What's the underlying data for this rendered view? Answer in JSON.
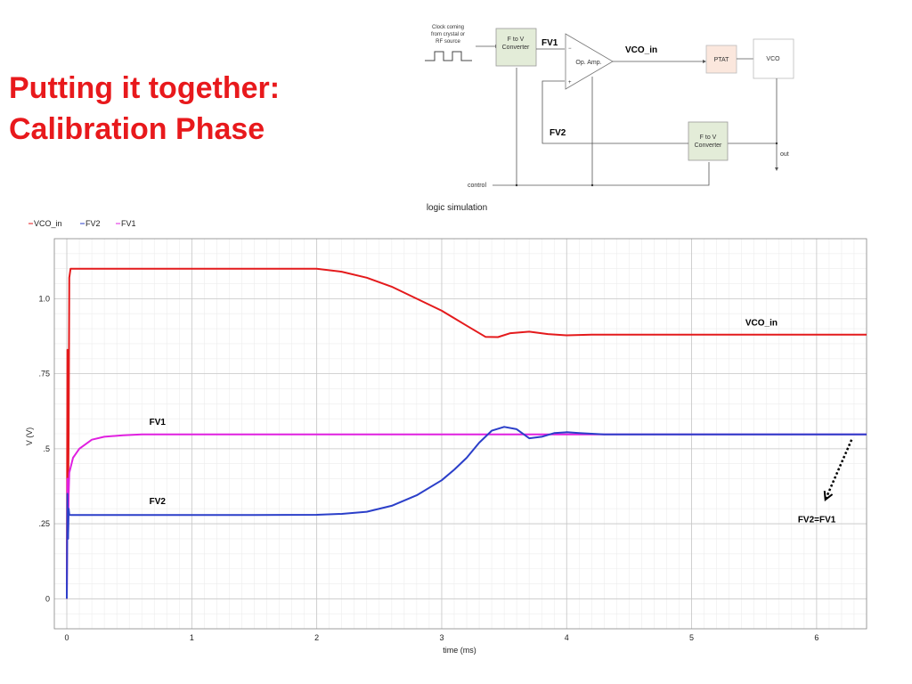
{
  "slide": {
    "title_line1": "Putting it together:",
    "title_line2": "Calibration Phase"
  },
  "diagram": {
    "clock_text": [
      "Clock coming",
      "from crystal or",
      "RF source"
    ],
    "fv_converter_top": [
      "F to V",
      "Converter"
    ],
    "fv_converter_bottom": [
      "F to V",
      "Converter"
    ],
    "opamp_label": "Op. Amp.",
    "opamp_minus": "−",
    "opamp_plus": "+",
    "ptat_label": "PTAT",
    "vco_label": "VCO",
    "fv1_label": "FV1",
    "fv2_label": "FV2",
    "vco_in_label": "VCO_in",
    "out_label": "out",
    "control_label": "control",
    "colors": {
      "converter_fill": "#e3ecd8",
      "ptat_fill": "#fbe7dd"
    }
  },
  "chart_data": {
    "type": "line",
    "title": "logic simulation",
    "xlabel": "time (ms)",
    "ylabel": "V (V)",
    "xlim": [
      -0.1,
      6.4
    ],
    "ylim": [
      -0.1,
      1.2
    ],
    "x_ticks": [
      {
        "value": 0,
        "label": "0"
      },
      {
        "value": 1,
        "label": "1"
      },
      {
        "value": 2,
        "label": "2"
      },
      {
        "value": 3,
        "label": "3"
      },
      {
        "value": 4,
        "label": "4"
      },
      {
        "value": 5,
        "label": "5"
      },
      {
        "value": 6,
        "label": "6"
      }
    ],
    "y_ticks": [
      {
        "value": 0,
        "label": "0"
      },
      {
        "value": 0.25,
        "label": ".25"
      },
      {
        "value": 0.5,
        "label": ".5"
      },
      {
        "value": 0.75,
        "label": ".75"
      },
      {
        "value": 1.0,
        "label": "1.0"
      }
    ],
    "grid": true,
    "legend_position": "top-left",
    "legend": [
      {
        "name": "VCO_in",
        "color": "#e41a1c"
      },
      {
        "name": "FV2",
        "color": "#2b3fc9"
      },
      {
        "name": "FV1",
        "color": "#e020e0"
      }
    ],
    "series": [
      {
        "name": "VCO_in",
        "color": "#e41a1c",
        "x": [
          0,
          0.005,
          0.01,
          0.015,
          0.02,
          0.03,
          0.5,
          1.0,
          1.5,
          1.8,
          2.0,
          2.2,
          2.4,
          2.6,
          2.8,
          3.0,
          3.2,
          3.35,
          3.45,
          3.55,
          3.7,
          3.85,
          4.0,
          4.2,
          4.6,
          5.0,
          6.4
        ],
        "y": [
          0,
          0.83,
          0.3,
          0.55,
          1.07,
          1.1,
          1.1,
          1.1,
          1.1,
          1.1,
          1.1,
          1.09,
          1.07,
          1.04,
          1.0,
          0.96,
          0.91,
          0.873,
          0.872,
          0.885,
          0.89,
          0.882,
          0.878,
          0.88,
          0.88,
          0.88,
          0.88
        ]
      },
      {
        "name": "FV1",
        "color": "#e020e0",
        "x": [
          0,
          0.005,
          0.01,
          0.015,
          0.02,
          0.05,
          0.1,
          0.2,
          0.3,
          0.45,
          0.6,
          1.0,
          2.0,
          3.0,
          4.0,
          5.0,
          6.4
        ],
        "y": [
          0,
          0.4,
          0.2,
          0.35,
          0.42,
          0.47,
          0.5,
          0.53,
          0.54,
          0.545,
          0.548,
          0.548,
          0.548,
          0.548,
          0.548,
          0.548,
          0.548
        ]
      },
      {
        "name": "FV2",
        "color": "#2b3fc9",
        "x": [
          0,
          0.005,
          0.01,
          0.015,
          0.02,
          0.03,
          0.5,
          1.0,
          1.5,
          2.0,
          2.2,
          2.4,
          2.6,
          2.8,
          3.0,
          3.1,
          3.2,
          3.3,
          3.4,
          3.5,
          3.6,
          3.7,
          3.8,
          3.9,
          4.0,
          4.1,
          4.3,
          4.6,
          5.0,
          6.4
        ],
        "y": [
          0,
          0.35,
          0.2,
          0.3,
          0.28,
          0.279,
          0.279,
          0.279,
          0.279,
          0.28,
          0.283,
          0.29,
          0.31,
          0.345,
          0.395,
          0.43,
          0.47,
          0.52,
          0.56,
          0.573,
          0.565,
          0.535,
          0.54,
          0.552,
          0.555,
          0.552,
          0.548,
          0.548,
          0.548,
          0.548
        ]
      }
    ],
    "annotations": [
      {
        "text": "VCO_in",
        "x": 5.43,
        "y": 0.91
      },
      {
        "text": "FV1",
        "x": 0.66,
        "y": 0.58
      },
      {
        "text": "FV2",
        "x": 0.66,
        "y": 0.315
      },
      {
        "text": "FV2=FV1",
        "x": 5.85,
        "y": 0.255
      }
    ],
    "arrow": {
      "from": [
        6.28,
        0.53
      ],
      "to": [
        6.07,
        0.33
      ],
      "color": "#000000"
    }
  }
}
